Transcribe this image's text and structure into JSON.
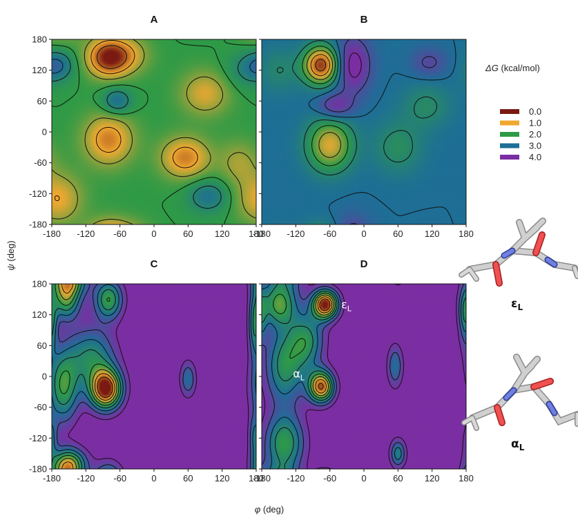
{
  "chart_data": {
    "type": "heatmap",
    "xlabel_sym": "φ",
    "xlabel_unit": " (deg)",
    "ylabel_sym": "ψ",
    "ylabel_unit": " (deg)",
    "xlim": [
      -180,
      180
    ],
    "ylim": [
      -180,
      180
    ],
    "ticks": [
      -180,
      -120,
      -60,
      0,
      60,
      120,
      180
    ],
    "tick_labels": [
      "-180",
      "-120",
      "-60",
      "0",
      "60",
      "120",
      "180"
    ],
    "legend_title_sym": "ΔG",
    "legend_title_unit": " (kcal/mol)",
    "legend": [
      {
        "label": "0.0",
        "value": 0.0,
        "color": "#7a1a12"
      },
      {
        "label": "1.0",
        "value": 1.0,
        "color": "#f0a830"
      },
      {
        "label": "2.0",
        "value": 2.0,
        "color": "#2e9a46"
      },
      {
        "label": "3.0",
        "value": 3.0,
        "color": "#1e6e96"
      },
      {
        "label": "4.0",
        "value": 4.0,
        "color": "#7a2ea2"
      }
    ],
    "panels": [
      {
        "id": "A",
        "baseline": 2.0,
        "basins": [
          {
            "phi": -80,
            "psi": 145,
            "depth": 2.0,
            "sphi": 26,
            "spsi": 26
          },
          {
            "phi": -80,
            "psi": -15,
            "depth": 1.3,
            "sphi": 30,
            "spsi": 34
          },
          {
            "phi": 55,
            "psi": -50,
            "depth": 1.3,
            "sphi": 30,
            "spsi": 28
          },
          {
            "phi": -170,
            "psi": -130,
            "depth": 1.0,
            "sphi": 30,
            "spsi": 34
          },
          {
            "phi": 90,
            "psi": 75,
            "depth": 0.9,
            "sphi": 30,
            "spsi": 30
          },
          {
            "phi": -40,
            "psi": 150,
            "depth": 0.6,
            "sphi": 25,
            "spsi": 25
          },
          {
            "phi": 150,
            "psi": -60,
            "depth": 0.6,
            "sphi": 25,
            "spsi": 30
          },
          {
            "phi": -170,
            "psi": 130,
            "depth": -1.0,
            "sphi": 20,
            "spsi": 20
          },
          {
            "phi": -65,
            "psi": 60,
            "depth": -1.0,
            "sphi": 18,
            "spsi": 18
          },
          {
            "phi": 95,
            "psi": -125,
            "depth": -0.9,
            "sphi": 25,
            "spsi": 22
          },
          {
            "phi": 160,
            "psi": 120,
            "depth": -0.5,
            "sphi": 25,
            "spsi": 25
          }
        ]
      },
      {
        "id": "B",
        "baseline": 3.0,
        "basins": [
          {
            "phi": -75,
            "psi": 130,
            "depth": 2.8,
            "sphi": 22,
            "spsi": 26
          },
          {
            "phi": -60,
            "psi": -25,
            "depth": 1.9,
            "sphi": 28,
            "spsi": 36
          },
          {
            "phi": 60,
            "psi": -30,
            "depth": 0.7,
            "sphi": 30,
            "spsi": 35
          },
          {
            "phi": 110,
            "psi": 50,
            "depth": 0.6,
            "sphi": 30,
            "spsi": 30
          },
          {
            "phi": -150,
            "psi": 120,
            "depth": 0.5,
            "sphi": 25,
            "spsi": 30
          },
          {
            "phi": -20,
            "psi": 130,
            "depth": -1.3,
            "sphi": 22,
            "spsi": 38
          },
          {
            "phi": -50,
            "psi": 50,
            "depth": -1.0,
            "sphi": 22,
            "spsi": 18
          },
          {
            "phi": 115,
            "psi": 135,
            "depth": -0.6,
            "sphi": 22,
            "spsi": 20
          }
        ]
      },
      {
        "id": "C",
        "baseline": 4.5,
        "basins": [
          {
            "phi": -85,
            "psi": -25,
            "depth": 4.5,
            "sphi": 20,
            "spsi": 28
          },
          {
            "phi": -155,
            "psi": 150,
            "depth": 2.5,
            "sphi": 18,
            "spsi": 28
          },
          {
            "phi": -80,
            "psi": 150,
            "depth": 2.5,
            "sphi": 18,
            "spsi": 28
          },
          {
            "phi": -160,
            "psi": -20,
            "depth": 2.5,
            "sphi": 20,
            "spsi": 50
          },
          {
            "phi": -150,
            "psi": -170,
            "depth": 2.8,
            "sphi": 22,
            "spsi": 22
          },
          {
            "phi": -110,
            "psi": 40,
            "depth": 2.0,
            "sphi": 30,
            "spsi": 40
          },
          {
            "phi": 60,
            "psi": -5,
            "depth": 1.5,
            "sphi": 10,
            "spsi": 25
          },
          {
            "phi": 178,
            "psi": 100,
            "depth": 2.0,
            "sphi": 8,
            "spsi": 40
          },
          {
            "phi": 178,
            "psi": -120,
            "depth": 1.5,
            "sphi": 8,
            "spsi": 30
          }
        ]
      },
      {
        "id": "D",
        "baseline": 4.5,
        "basins": [
          {
            "phi": -68,
            "psi": 140,
            "depth": 4.5,
            "sphi": 16,
            "spsi": 20
          },
          {
            "phi": -75,
            "psi": -20,
            "depth": 4.0,
            "sphi": 16,
            "spsi": 22
          },
          {
            "phi": -150,
            "psi": 140,
            "depth": 2.4,
            "sphi": 22,
            "spsi": 30
          },
          {
            "phi": -140,
            "psi": 20,
            "depth": 2.2,
            "sphi": 25,
            "spsi": 55
          },
          {
            "phi": -140,
            "psi": -130,
            "depth": 2.4,
            "sphi": 25,
            "spsi": 40
          },
          {
            "phi": -100,
            "psi": 70,
            "depth": 2.0,
            "sphi": 22,
            "spsi": 40
          },
          {
            "phi": 55,
            "psi": 20,
            "depth": 1.5,
            "sphi": 10,
            "spsi": 30
          },
          {
            "phi": 60,
            "psi": -150,
            "depth": 1.8,
            "sphi": 10,
            "spsi": 20
          },
          {
            "phi": 178,
            "psi": 120,
            "depth": 1.5,
            "sphi": 8,
            "spsi": 40
          }
        ]
      }
    ],
    "annotations": [
      {
        "panel": "D",
        "label_main": "ε",
        "label_sub": "L",
        "phi": -40,
        "psi": 132
      },
      {
        "panel": "D",
        "label_main": "α",
        "label_sub": "L",
        "phi": -125,
        "psi": -2
      }
    ]
  },
  "molecules": [
    {
      "label_main": "ε",
      "label_sub": "L"
    },
    {
      "label_main": "α",
      "label_sub": "L"
    }
  ]
}
